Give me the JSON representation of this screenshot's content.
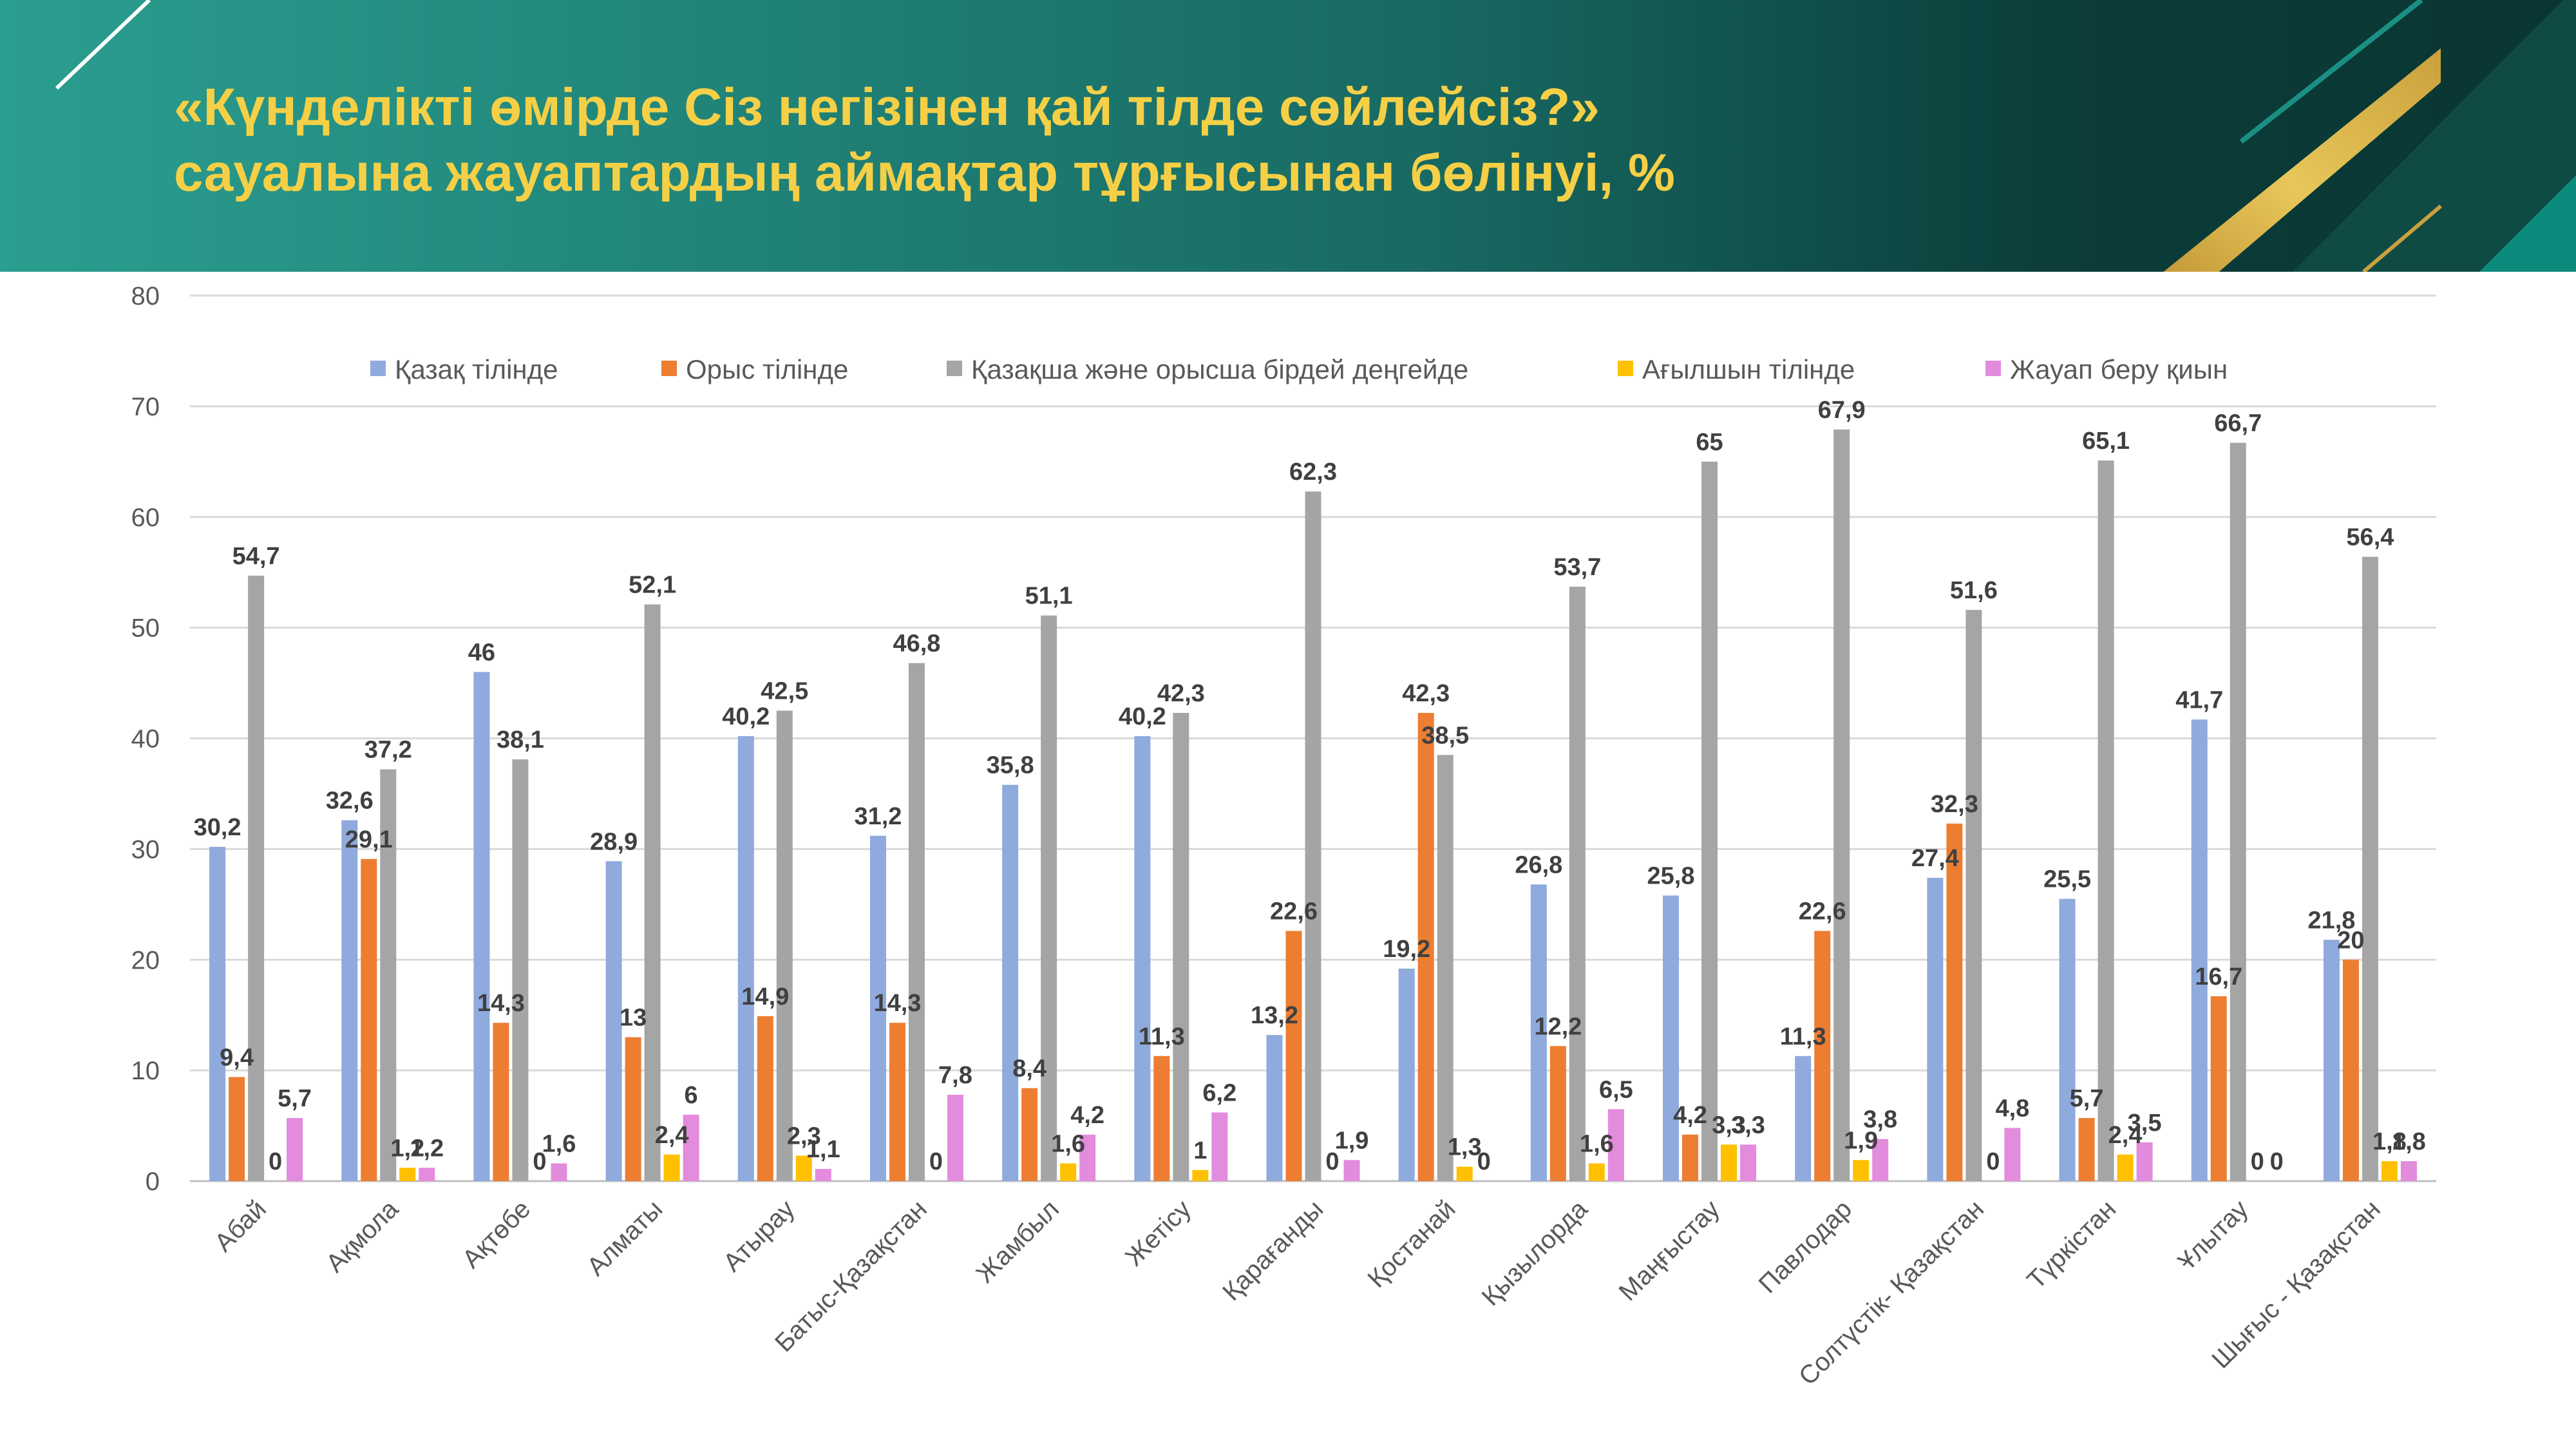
{
  "slide": {
    "title_line1": "«Күнделікті өмірде Сіз негізінен қай тілде сөйлейсіз?»",
    "title_line2": "сауалына жауаптардың аймақтар тұрғысынан  бөлінуі, %"
  },
  "colors": {
    "title": "#f5d046",
    "header_start": "#2a9e8f",
    "header_end": "#0b3d3a",
    "gold": "#c9a13c"
  },
  "chart_data": {
    "type": "bar",
    "ylim": [
      0,
      80
    ],
    "yticks": [
      0,
      10,
      20,
      30,
      40,
      50,
      60,
      70,
      80
    ],
    "grid": true,
    "legend_position": "top",
    "categories": [
      "Абай",
      "Ақмола",
      "Ақтөбе",
      "Алматы",
      "Атырау",
      "Батыс-Қазақстан",
      "Жамбыл",
      "Жетісу",
      "Қарағанды",
      "Қостанай",
      "Қызылорда",
      "Маңғыстау",
      "Павлодар",
      "Солтүстік- Қазақстан",
      "Түркістан",
      "Ұлытау",
      "Шығыс - Қазақстан"
    ],
    "series": [
      {
        "name": "Қазақ тілінде",
        "color": "#8faadc",
        "values": [
          30.2,
          32.6,
          46,
          28.9,
          40.2,
          31.2,
          35.8,
          40.2,
          13.2,
          19.2,
          26.8,
          25.8,
          11.3,
          27.4,
          25.5,
          41.7,
          21.8
        ],
        "labels": [
          "30,2",
          "32,6",
          "46",
          "28,9",
          "40,2",
          "31,2",
          "35,8",
          "40,2",
          "13,2",
          "19,2",
          "26,8",
          "25,8",
          "11,3",
          "27,4",
          "25,5",
          "41,7",
          "21,8"
        ]
      },
      {
        "name": "Орыс тілінде",
        "color": "#ed7d31",
        "values": [
          9.4,
          29.1,
          14.3,
          13,
          14.9,
          14.3,
          8.4,
          11.3,
          22.6,
          42.3,
          12.2,
          4.2,
          22.6,
          32.3,
          5.7,
          16.7,
          20
        ],
        "labels": [
          "9,4",
          "29,1",
          "14,3",
          "13",
          "14,9",
          "14,3",
          "8,4",
          "11,3",
          "22,6",
          "42,3",
          "12,2",
          "4,2",
          "22,6",
          "32,3",
          "5,7",
          "16,7",
          "20"
        ]
      },
      {
        "name": "Қазақша және орысша бірдей деңгейде",
        "color": "#a5a5a5",
        "values": [
          54.7,
          37.2,
          38.1,
          52.1,
          42.5,
          46.8,
          51.1,
          42.3,
          62.3,
          38.5,
          53.7,
          65,
          67.9,
          51.6,
          65.1,
          66.7,
          56.4
        ],
        "labels": [
          "54,7",
          "37,2",
          "38,1",
          "52,1",
          "42,5",
          "46,8",
          "51,1",
          "42,3",
          "62,3",
          "38,5",
          "53,7",
          "65",
          "67,9",
          "51,6",
          "65,1",
          "66,7",
          "56,4"
        ]
      },
      {
        "name": "Ағылшын тілінде",
        "color": "#ffc000",
        "values": [
          0,
          1.2,
          0,
          2.4,
          2.3,
          0,
          1.6,
          1,
          0,
          1.3,
          1.6,
          3.3,
          1.9,
          0,
          2.4,
          0,
          1.8
        ],
        "labels": [
          "0",
          "1,2",
          "0",
          "2,4",
          "2,3",
          "0",
          "1,6",
          "1",
          "0",
          "1,3",
          "1,6",
          "3,3",
          "1,9",
          "0",
          "2,4",
          "0",
          "1,8"
        ]
      },
      {
        "name": "Жауап беру қиын",
        "color": "#e38bdc",
        "values": [
          5.7,
          1.2,
          1.6,
          6,
          1.1,
          7.8,
          4.2,
          6.2,
          1.9,
          0,
          6.5,
          3.3,
          3.8,
          4.8,
          3.5,
          0,
          1.8
        ],
        "labels": [
          "5,7",
          "1,2",
          "1,6",
          "6",
          "1,1",
          "7,8",
          "4,2",
          "6,2",
          "1,9",
          "0",
          "6,5",
          "3,3",
          "3,8",
          "4,8",
          "3,5",
          "0",
          "1,8"
        ]
      }
    ]
  }
}
